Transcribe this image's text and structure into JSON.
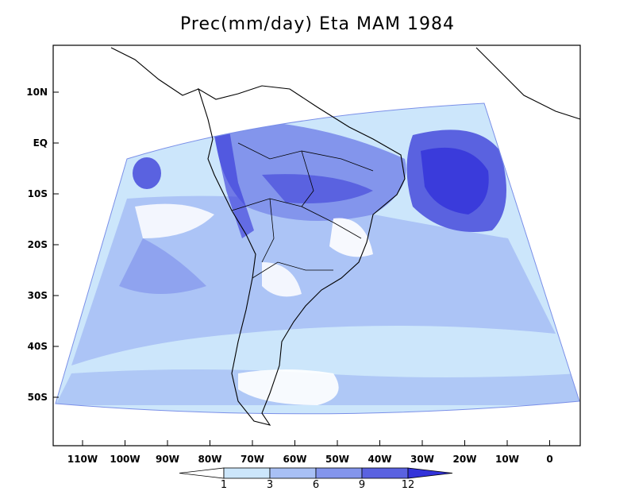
{
  "title": "Prec(mm/day) Eta MAM 1984",
  "map": {
    "lon_labels": [
      "110W",
      "100W",
      "90W",
      "80W",
      "70W",
      "60W",
      "50W",
      "40W",
      "30W",
      "20W",
      "10W",
      "0"
    ],
    "lat_labels": [
      "10N",
      "EQ",
      "10S",
      "20S",
      "30S",
      "40S",
      "50S"
    ],
    "lon_range": [
      -117,
      7
    ],
    "lat_range": [
      -60,
      20
    ]
  },
  "colorbar": {
    "levels": [
      "1",
      "3",
      "6",
      "9",
      "12"
    ],
    "colors": [
      "#ffffff",
      "#cce6fb",
      "#a8c0f5",
      "#8395ec",
      "#5a62e0",
      "#3232d9"
    ]
  }
}
